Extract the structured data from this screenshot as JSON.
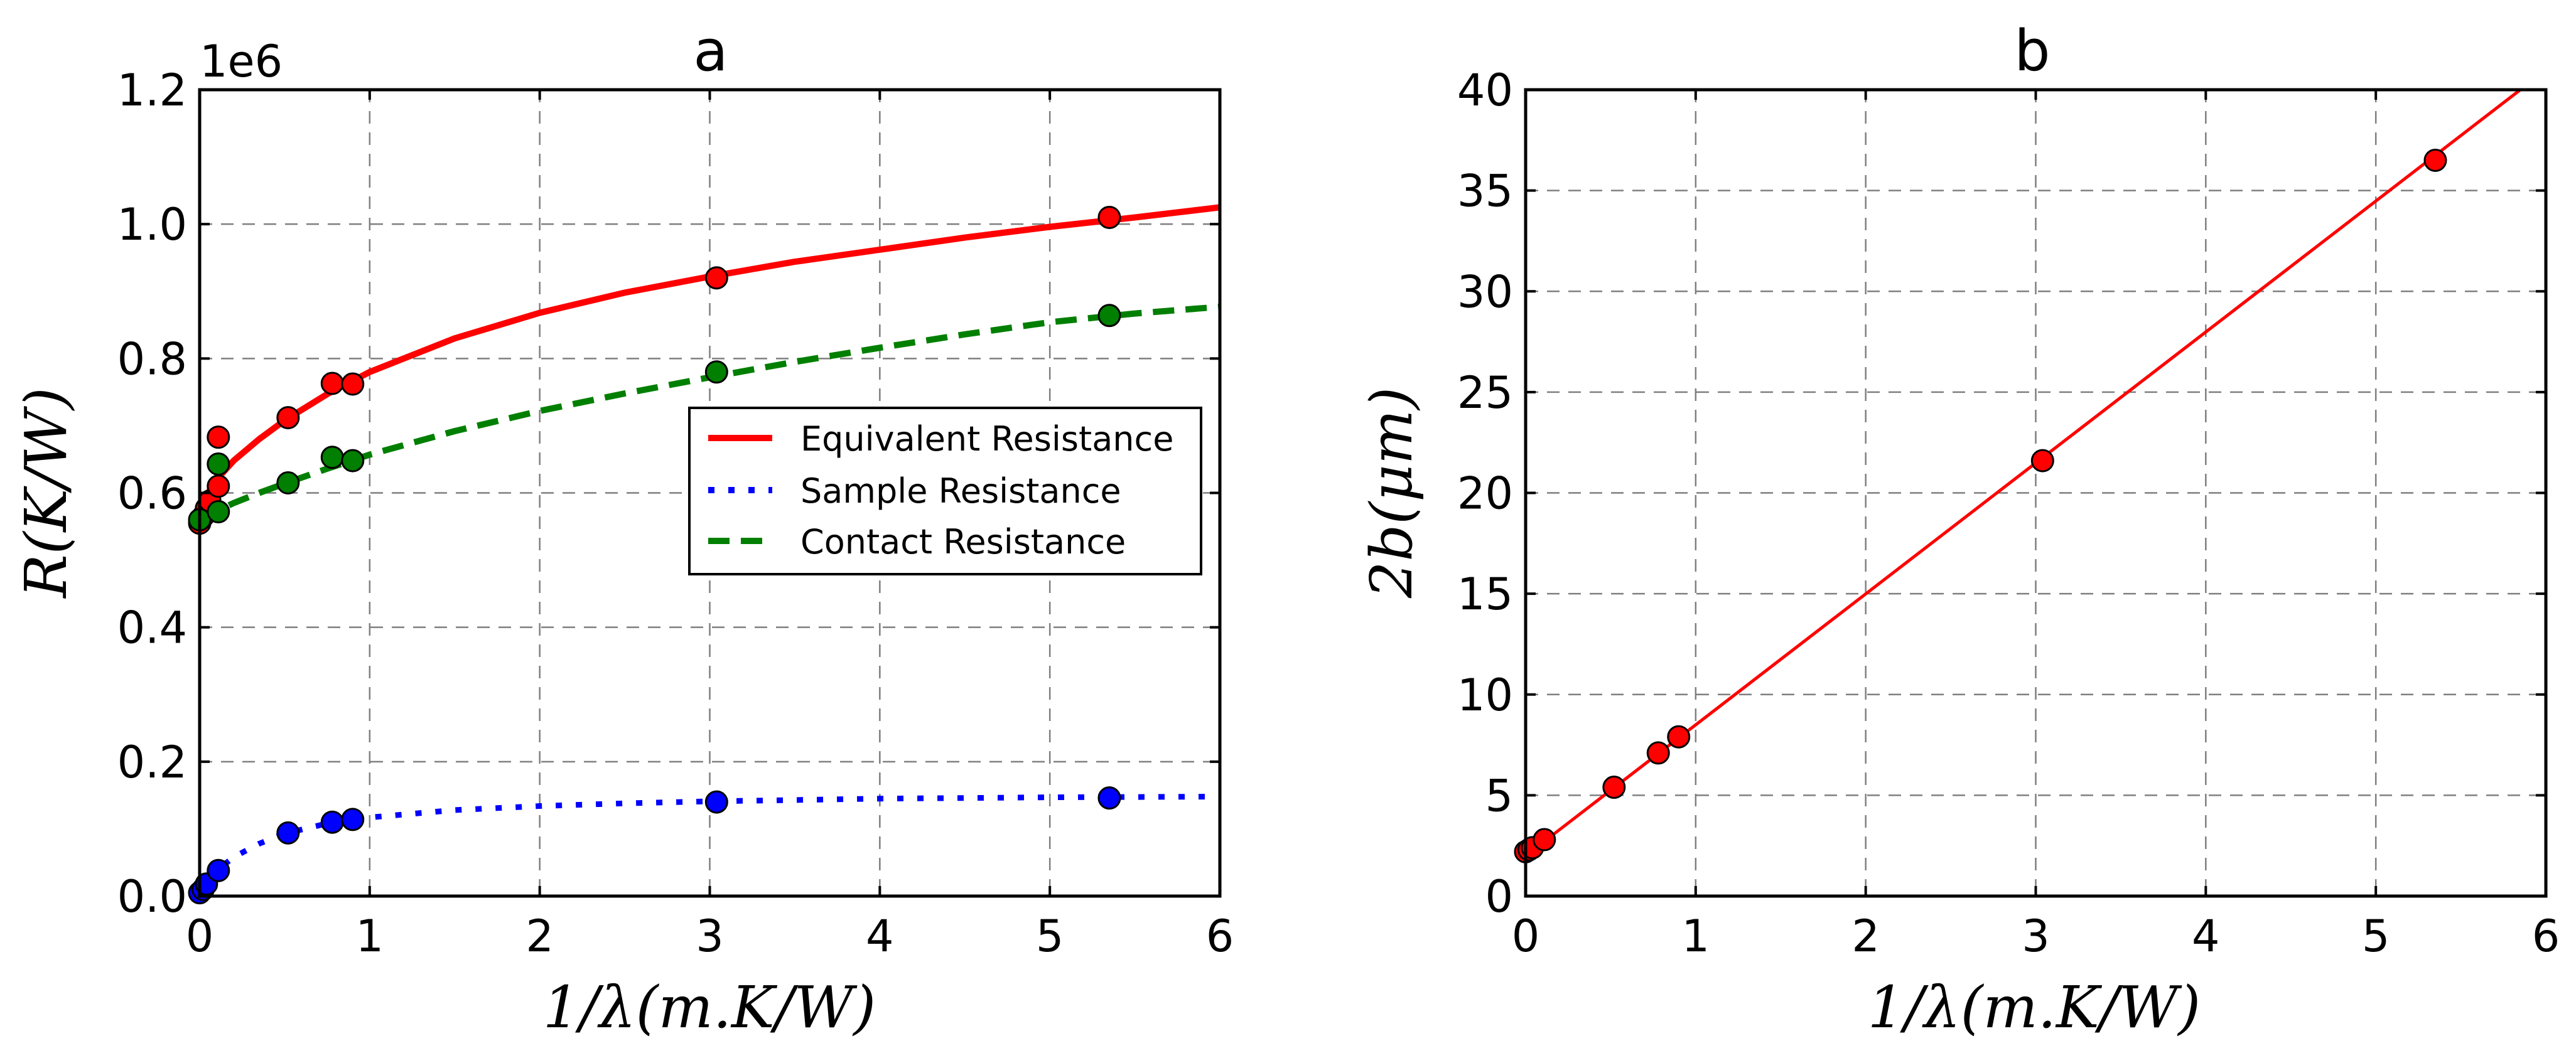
{
  "chart_data": [
    {
      "type": "line",
      "title": "a",
      "xlabel": "1/λ(m.K/W)",
      "ylabel": "R(K/W)",
      "offset_text": "1e6",
      "xlim": [
        0,
        6
      ],
      "ylim": [
        0,
        1200000
      ],
      "xticks": [
        0,
        1,
        2,
        3,
        4,
        5,
        6
      ],
      "xtick_labels": [
        "0",
        "1",
        "2",
        "3",
        "4",
        "5",
        "6"
      ],
      "yticks": [
        0,
        200000,
        400000,
        600000,
        800000,
        1000000,
        1200000
      ],
      "ytick_labels": [
        "0.0",
        "0.2",
        "0.4",
        "0.6",
        "0.8",
        "1.0",
        "1.2"
      ],
      "grid": true,
      "legend_position": "center-right",
      "series": [
        {
          "name": "Equivalent Resistance",
          "color": "#ff0000",
          "style": "solid",
          "fit": {
            "x": [
              0,
              0.05,
              0.1,
              0.2,
              0.35,
              0.5,
              0.75,
              1,
              1.5,
              2,
              2.5,
              3,
              3.5,
              4,
              4.5,
              5,
              5.5,
              6
            ],
            "y": [
              570000,
              600000,
              620000,
              648000,
              680000,
              708000,
              747000,
              780000,
              830000,
              868000,
              898000,
              922000,
              944000,
              962000,
              980000,
              996000,
              1010000,
              1025000
            ]
          },
          "points": {
            "x": [
              0,
              0.02,
              0.04,
              0.06,
              0.11,
              0.11,
              0.52,
              0.78,
              0.9,
              3.04,
              5.35
            ],
            "y": [
              555000,
              565000,
              577000,
              588000,
              610000,
              683000,
              712000,
              763000,
              762000,
              920000,
              1010000
            ]
          }
        },
        {
          "name": "Sample Resistance",
          "color": "#0000ff",
          "style": "dotted",
          "fit": {
            "x": [
              0,
              0.05,
              0.1,
              0.2,
              0.35,
              0.5,
              0.75,
              1,
              1.5,
              2,
              2.5,
              3,
              3.5,
              4,
              4.5,
              5,
              5.5,
              6
            ],
            "y": [
              0,
              20000,
              38000,
              58000,
              78000,
              93000,
              108000,
              117000,
              128000,
              134000,
              138000,
              141000,
              143000,
              145000,
              146000,
              147000,
              147500,
              148000
            ]
          },
          "points": {
            "x": [
              0,
              0.02,
              0.04,
              0.11,
              0.52,
              0.78,
              0.9,
              3.04,
              5.35
            ],
            "y": [
              5000,
              10000,
              18000,
              38000,
              94000,
              110000,
              114000,
              140000,
              146000
            ]
          }
        },
        {
          "name": "Contact Resistance",
          "color": "#007f00",
          "style": "dashed",
          "fit": {
            "x": [
              0,
              0.1,
              0.2,
              0.35,
              0.5,
              0.75,
              1,
              1.5,
              2,
              2.5,
              3,
              3.5,
              4,
              4.5,
              5,
              5.5,
              6
            ],
            "y": [
              560000,
              573000,
              585000,
              600000,
              614000,
              636000,
              657000,
              692000,
              722000,
              748000,
              772000,
              795000,
              816000,
              836000,
              854000,
              867000,
              877000
            ]
          },
          "points": {
            "x": [
              0,
              0.11,
              0.11,
              0.52,
              0.78,
              0.9,
              3.04,
              5.35
            ],
            "y": [
              560000,
              572000,
              643000,
              615000,
              653000,
              648000,
              780000,
              864000
            ]
          }
        }
      ]
    },
    {
      "type": "scatter",
      "title": "b",
      "xlabel": "1/λ(m.K/W)",
      "ylabel": "2b(μm)",
      "xlim": [
        0,
        6
      ],
      "ylim": [
        0,
        40
      ],
      "xticks": [
        0,
        1,
        2,
        3,
        4,
        5,
        6
      ],
      "xtick_labels": [
        "0",
        "1",
        "2",
        "3",
        "4",
        "5",
        "6"
      ],
      "yticks": [
        0,
        5,
        10,
        15,
        20,
        25,
        30,
        35,
        40
      ],
      "ytick_labels": [
        "0",
        "5",
        "10",
        "15",
        "20",
        "25",
        "30",
        "35",
        "40"
      ],
      "grid": true,
      "series": [
        {
          "color": "#ff0000",
          "fit": {
            "x": [
              0,
              5.85
            ],
            "y": [
              2.0,
              40
            ]
          },
          "points": {
            "x": [
              0,
              0.02,
              0.04,
              0.11,
              0.52,
              0.78,
              0.9,
              3.04,
              5.35
            ],
            "y": [
              2.2,
              2.3,
              2.4,
              2.8,
              5.4,
              7.1,
              7.9,
              21.6,
              36.5
            ]
          }
        }
      ]
    }
  ]
}
